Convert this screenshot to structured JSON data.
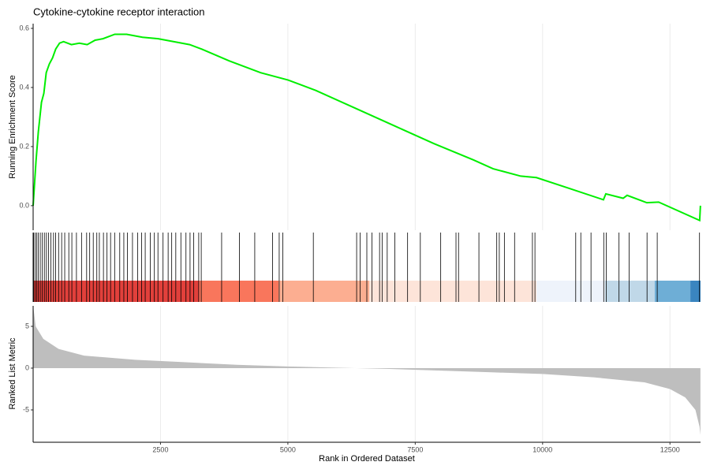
{
  "chart_data": [
    {
      "type": "line",
      "title": "Cytokine-cytokine receptor interaction",
      "y_label": "Running Enrichment Score",
      "x": [
        0,
        56,
        102,
        164,
        210,
        257,
        319,
        381,
        443,
        519,
        597,
        752,
        907,
        1061,
        1216,
        1371,
        1603,
        1835,
        2145,
        2454,
        2764,
        3073,
        3305,
        3847,
        4464,
        5006,
        5547,
        6321,
        7094,
        7868,
        8641,
        9028,
        9570,
        9879,
        10498,
        11194,
        11241,
        11581,
        11659,
        12046,
        12278,
        13083,
        13098
      ],
      "series": [
        {
          "name": "Running Enrichment Score",
          "color": "#00ee00",
          "values": [
            0,
            0.15,
            0.25,
            0.35,
            0.38,
            0.45,
            0.48,
            0.5,
            0.53,
            0.55,
            0.555,
            0.545,
            0.55,
            0.545,
            0.56,
            0.565,
            0.58,
            0.58,
            0.57,
            0.565,
            0.555,
            0.545,
            0.53,
            0.49,
            0.45,
            0.425,
            0.39,
            0.33,
            0.27,
            0.21,
            0.155,
            0.125,
            0.1,
            0.095,
            0.06,
            0.02,
            0.04,
            0.025,
            0.035,
            0.01,
            0.012,
            -0.05,
            0
          ]
        }
      ],
      "xlim": [
        0,
        13100
      ],
      "ylim": [
        -0.083,
        0.616
      ],
      "yticks": [
        {
          "value": 0,
          "label": "0.0"
        },
        0.2,
        0.4,
        0.6
      ],
      "grid": true
    },
    {
      "type": "rug",
      "x": [
        10,
        40,
        70,
        100,
        140,
        180,
        220,
        260,
        300,
        350,
        400,
        440,
        500,
        560,
        620,
        700,
        760,
        850,
        950,
        1050,
        1110,
        1180,
        1250,
        1300,
        1380,
        1450,
        1520,
        1600,
        1700,
        1780,
        1850,
        1950,
        2050,
        2130,
        2200,
        2300,
        2380,
        2450,
        2550,
        2650,
        2720,
        2800,
        2900,
        3000,
        3080,
        3150,
        3250,
        3300,
        3700,
        4050,
        4350,
        4700,
        4830,
        4900,
        5500,
        6350,
        6420,
        6550,
        6650,
        6800,
        6850,
        6950,
        7100,
        7350,
        7600,
        8000,
        8300,
        8350,
        8750,
        9100,
        9150,
        9250,
        9450,
        9800,
        9850,
        10650,
        10750,
        10950,
        11200,
        11250,
        11500,
        11700,
        12050,
        12250,
        13080
      ],
      "bands": [
        {
          "start": 0,
          "end": 3260,
          "color": "#e2403b"
        },
        {
          "start": 3260,
          "end": 4820,
          "color": "#f9765c"
        },
        {
          "start": 4820,
          "end": 6600,
          "color": "#fcae91"
        },
        {
          "start": 6600,
          "end": 9880,
          "color": "#fde4d9"
        },
        {
          "start": 9880,
          "end": 11230,
          "color": "#eef3fb"
        },
        {
          "start": 11230,
          "end": 12200,
          "color": "#c0d8e8"
        },
        {
          "start": 12200,
          "end": 12900,
          "color": "#6eaed6"
        },
        {
          "start": 12900,
          "end": 13100,
          "color": "#3a85c0"
        }
      ],
      "xlim": [
        0,
        13100
      ]
    },
    {
      "type": "area",
      "y_label": "Ranked List Metric",
      "x_label": "Rank in Ordered Dataset",
      "x": [
        0,
        50,
        200,
        500,
        1000,
        2000,
        3000,
        4000,
        5000,
        6000,
        7000,
        8000,
        9000,
        10000,
        11000,
        12000,
        12500,
        12800,
        13000,
        13080,
        13098
      ],
      "series": [
        {
          "name": "Ranked List Metric",
          "color": "#bebebe",
          "values": [
            7.5,
            5,
            3.5,
            2.3,
            1.5,
            1.0,
            0.7,
            0.4,
            0.2,
            0.05,
            -0.1,
            -0.3,
            -0.5,
            -0.7,
            -1.1,
            -1.7,
            -2.5,
            -3.5,
            -5,
            -7,
            -8
          ]
        }
      ],
      "xlim": [
        0,
        13100
      ],
      "ylim": [
        -8.87,
        7.45
      ],
      "xticks": [
        2500,
        5000,
        7500,
        10000,
        12500
      ],
      "yticks": [
        -5,
        0,
        5
      ],
      "grid": true
    }
  ]
}
